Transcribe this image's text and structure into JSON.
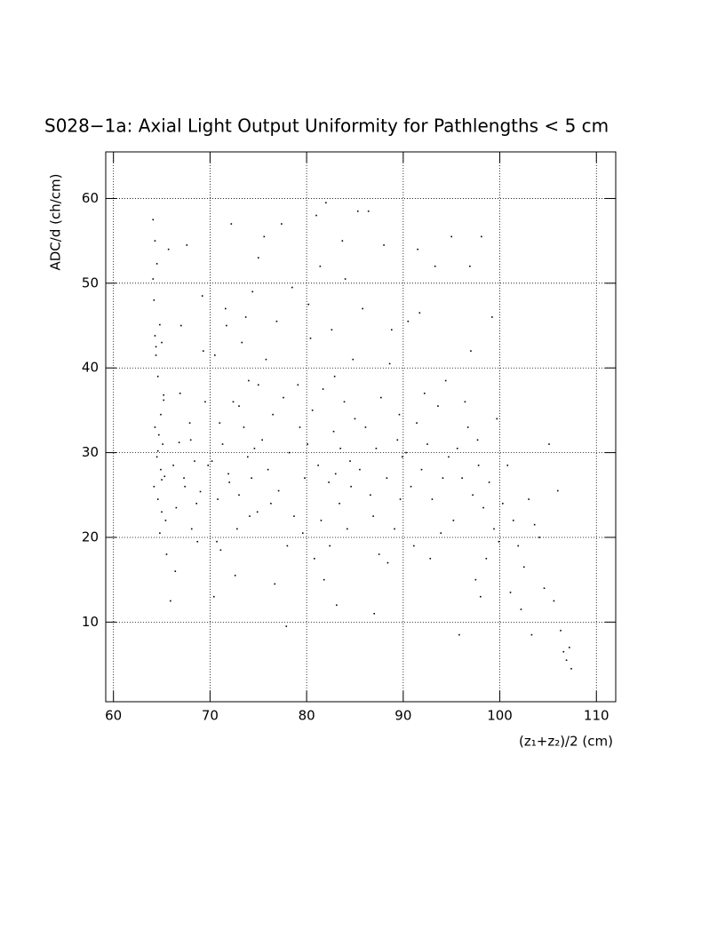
{
  "chart_data": {
    "type": "scatter",
    "title": "S028−1a: Axial Light Output Uniformity for Pathlengths < 5 cm",
    "x_label": "(z₁+z₂)/2 (cm)",
    "y_label": "ADC/d (ch/cm)",
    "color": "#000000",
    "grid": true,
    "xlim": [
      59.2,
      112
    ],
    "ylim": [
      0.6,
      65.5
    ],
    "xticks": [
      60,
      70,
      80,
      90,
      100,
      110
    ],
    "yticks": [
      10,
      20,
      30,
      40,
      50,
      60
    ],
    "x": [
      64.1,
      64.3,
      64.5,
      64.2,
      64.8,
      65.0,
      64.4,
      64.6,
      65.2,
      64.9,
      64.3,
      64.7,
      65.1,
      64.5,
      64.9,
      65.3,
      64.2,
      64.6,
      65.0,
      65.4,
      64.8,
      65.5,
      64.4,
      65.2,
      64.1,
      65.7,
      64.6,
      65.0,
      65.9,
      64.3,
      66.2,
      66.8,
      67.3,
      67.9,
      68.4,
      69.0,
      69.5,
      66.5,
      67.0,
      67.6,
      68.1,
      68.7,
      69.3,
      66.9,
      67.4,
      68.0,
      68.6,
      69.2,
      69.8,
      66.4,
      70.2,
      70.8,
      71.3,
      71.9,
      72.4,
      73.0,
      73.5,
      74.1,
      74.6,
      75.0,
      70.5,
      71.1,
      71.7,
      72.2,
      72.8,
      73.3,
      73.9,
      74.4,
      74.9,
      70.4,
      71.0,
      72.0,
      73.0,
      74.0,
      75.0,
      70.7,
      72.6,
      74.3,
      71.6,
      73.7,
      75.4,
      76.0,
      76.5,
      77.1,
      77.6,
      78.2,
      78.7,
      79.3,
      79.8,
      75.8,
      76.3,
      76.9,
      77.4,
      78.0,
      78.5,
      79.1,
      79.6,
      75.6,
      76.7,
      77.9,
      80.1,
      80.6,
      81.2,
      81.7,
      82.3,
      82.8,
      83.4,
      83.9,
      84.5,
      85.0,
      80.4,
      81.0,
      81.5,
      82.0,
      82.6,
      83.1,
      83.7,
      84.2,
      84.8,
      80.8,
      81.8,
      82.9,
      84.0,
      85.3,
      80.2,
      83.5,
      84.6,
      81.4,
      82.4,
      83.0,
      85.5,
      86.1,
      86.6,
      87.2,
      87.7,
      88.3,
      88.8,
      89.4,
      89.9,
      86.4,
      86.9,
      87.5,
      88.0,
      88.6,
      89.1,
      89.7,
      85.8,
      87.0,
      88.4,
      89.6,
      90.3,
      90.8,
      91.4,
      91.9,
      92.5,
      93.0,
      93.6,
      94.1,
      94.7,
      95.2,
      90.5,
      91.1,
      91.7,
      92.2,
      92.8,
      93.3,
      93.9,
      94.4,
      95.0,
      91.5,
      95.6,
      96.1,
      96.7,
      97.2,
      97.8,
      98.3,
      98.9,
      99.4,
      99.9,
      96.4,
      97.0,
      97.5,
      98.1,
      98.6,
      99.2,
      95.8,
      96.9,
      97.7,
      98.0,
      99.7,
      100.3,
      100.8,
      101.4,
      101.9,
      102.5,
      103.0,
      103.6,
      104.1,
      104.6,
      105.1,
      105.6,
      106.0,
      106.3,
      106.6,
      106.9,
      107.2,
      107.4,
      102.2,
      103.3,
      101.1
    ],
    "values": [
      57.5,
      55.0,
      52.3,
      48.0,
      45.1,
      43.0,
      41.5,
      39.0,
      36.2,
      34.5,
      33.0,
      32.1,
      31.0,
      29.5,
      28.0,
      27.2,
      26.0,
      24.5,
      23.0,
      22.0,
      20.5,
      18.0,
      42.5,
      36.8,
      50.5,
      54.0,
      30.2,
      26.8,
      12.5,
      43.8,
      28.5,
      31.2,
      27.0,
      33.5,
      29.0,
      25.4,
      36.0,
      23.5,
      45.0,
      54.5,
      21.0,
      19.5,
      42.0,
      37.0,
      26.0,
      31.5,
      24.0,
      48.5,
      28.5,
      16.0,
      29.0,
      24.5,
      31.0,
      27.5,
      36.0,
      25.0,
      33.0,
      22.5,
      30.5,
      38.0,
      41.5,
      18.5,
      45.0,
      57.0,
      21.0,
      43.0,
      29.5,
      49.0,
      23.0,
      13.0,
      33.5,
      26.5,
      35.5,
      38.5,
      53.0,
      19.5,
      15.5,
      27.0,
      47.0,
      46.0,
      31.5,
      28.0,
      34.5,
      25.5,
      36.5,
      30.0,
      22.5,
      33.0,
      27.0,
      41.0,
      24.0,
      45.5,
      57.0,
      19.0,
      49.5,
      38.0,
      20.5,
      55.5,
      14.5,
      9.5,
      31.0,
      35.0,
      28.5,
      37.5,
      26.5,
      32.5,
      24.0,
      36.0,
      29.0,
      34.0,
      43.5,
      58.0,
      22.0,
      59.5,
      44.5,
      12.0,
      55.0,
      21.0,
      41.0,
      17.5,
      15.0,
      39.0,
      50.5,
      58.5,
      47.5,
      30.5,
      26.0,
      52.0,
      19.0,
      27.5,
      28.0,
      33.0,
      25.0,
      30.5,
      36.5,
      27.0,
      44.5,
      31.5,
      29.5,
      58.5,
      22.5,
      18.0,
      54.5,
      40.5,
      21.0,
      24.5,
      47.0,
      11.0,
      17.0,
      34.5,
      30.0,
      26.0,
      33.5,
      28.0,
      31.0,
      24.5,
      35.5,
      27.0,
      29.5,
      22.0,
      45.5,
      19.0,
      46.5,
      37.0,
      17.5,
      52.0,
      20.5,
      38.5,
      55.5,
      54.0,
      30.5,
      27.0,
      33.0,
      25.0,
      28.5,
      23.5,
      26.5,
      21.0,
      19.5,
      36.0,
      42.0,
      15.0,
      55.5,
      17.5,
      46.0,
      8.5,
      52.0,
      31.5,
      13.0,
      34.0,
      24.0,
      28.5,
      22.0,
      19.0,
      16.5,
      24.5,
      21.5,
      20.0,
      14.0,
      31.0,
      12.5,
      25.5,
      9.0,
      6.5,
      5.5,
      7.0,
      4.5,
      11.5,
      8.5,
      13.5
    ]
  }
}
